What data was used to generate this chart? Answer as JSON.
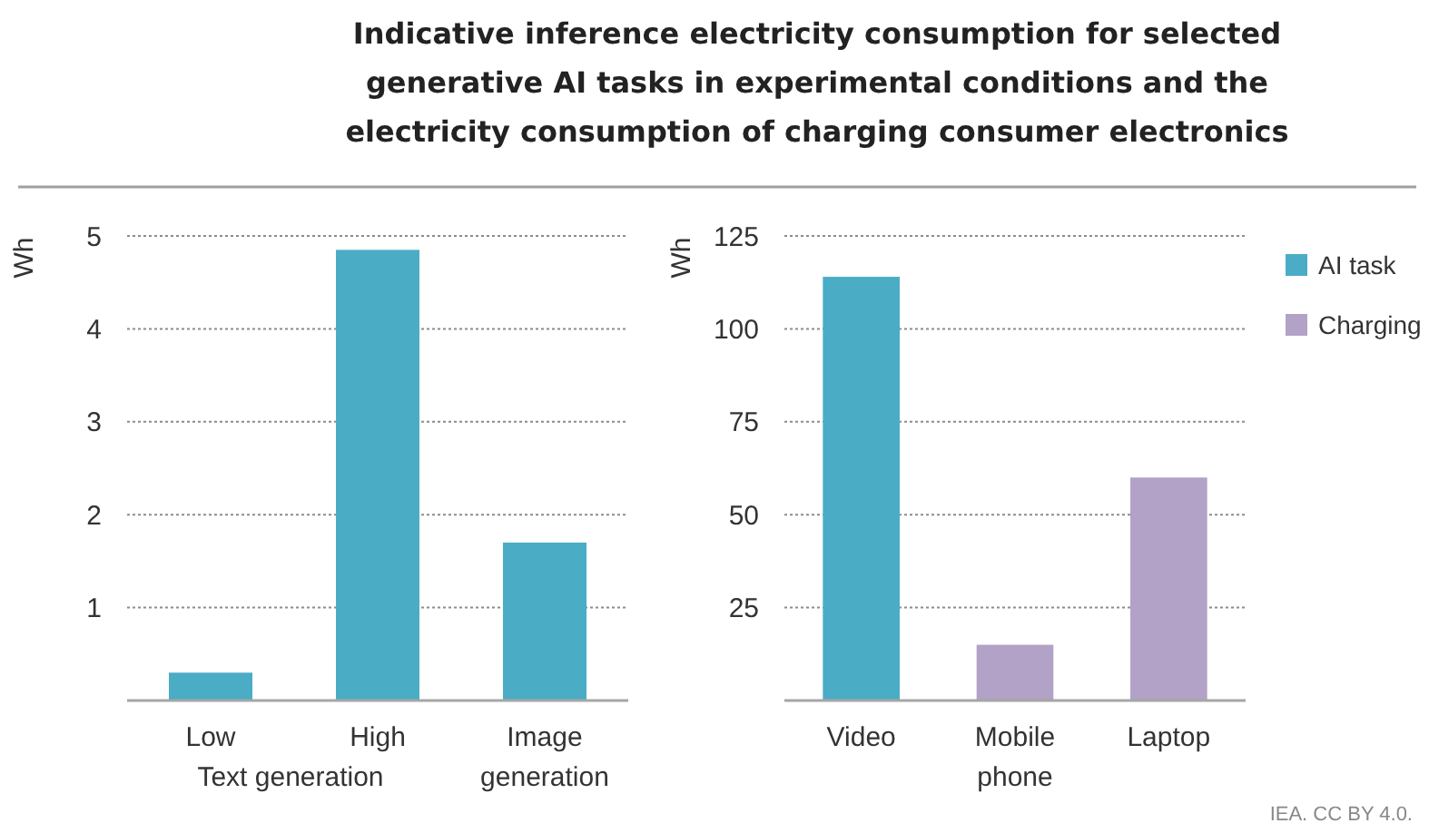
{
  "chart_data": [
    {
      "type": "bar",
      "title": "Indicative inference electricity consumption for selected generative AI tasks in experimental conditions and the electricity consumption of charging consumer electronics",
      "ylabel": "Wh",
      "categories": [
        "Low",
        "High",
        "Image generation"
      ],
      "series": [
        {
          "color": "#4bacc6",
          "values": [
            0.3,
            4.85,
            1.7
          ]
        }
      ],
      "ylim": [
        0,
        5
      ],
      "yticks": [
        1,
        2,
        3,
        4,
        5
      ],
      "grid": "y",
      "legend": false,
      "annotations": [
        "Text generation"
      ]
    },
    {
      "type": "bar",
      "ylabel": "Wh",
      "categories": [
        "Video",
        "Mobile phone",
        "Laptop"
      ],
      "series": [
        {
          "name": "AI task",
          "color": "#4bacc6",
          "values": [
            114,
            null,
            null
          ]
        },
        {
          "name": "Charging",
          "color": "#b3a2c7",
          "values": [
            null,
            15,
            60
          ]
        }
      ],
      "ylim": [
        0,
        125
      ],
      "yticks": [
        25,
        50,
        75,
        100,
        125
      ],
      "grid": "y",
      "legend": "right",
      "annotations": [
        "IEA. CC BY 4.0."
      ]
    }
  ]
}
